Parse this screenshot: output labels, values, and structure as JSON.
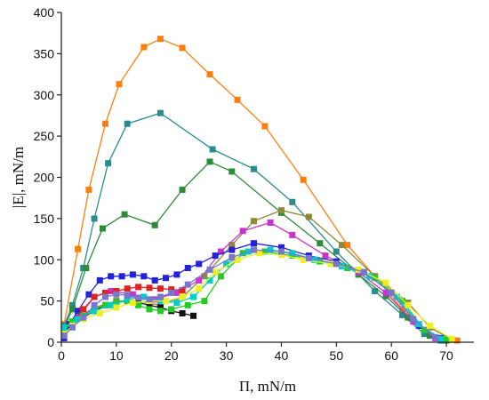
{
  "chart_data": {
    "type": "line",
    "xlabel": "Π, mN/m",
    "ylabel": "|E|, mN/m",
    "xlim": [
      0,
      75
    ],
    "ylim": [
      0,
      400
    ],
    "xticks": [
      0,
      10,
      20,
      30,
      40,
      50,
      60,
      70
    ],
    "yticks": [
      0,
      50,
      100,
      150,
      200,
      250,
      300,
      350,
      400
    ],
    "grid": false,
    "legend": "none",
    "series": [
      {
        "color": "#ff7f0e",
        "marker": "square",
        "points": [
          [
            0.5,
            22
          ],
          [
            3,
            113
          ],
          [
            5,
            185
          ],
          [
            8,
            265
          ],
          [
            10.5,
            313
          ],
          [
            15,
            358
          ],
          [
            18,
            368
          ],
          [
            22,
            357
          ],
          [
            27,
            325
          ],
          [
            32,
            294
          ],
          [
            37,
            262
          ],
          [
            44,
            197
          ],
          [
            52,
            118
          ],
          [
            57,
            80
          ],
          [
            62,
            40
          ],
          [
            66,
            13
          ],
          [
            70,
            3
          ],
          [
            72,
            2
          ]
        ]
      },
      {
        "color": "#2a8c8c",
        "marker": "square",
        "points": [
          [
            0.5,
            20
          ],
          [
            2,
            45
          ],
          [
            4,
            90
          ],
          [
            6,
            150
          ],
          [
            8.5,
            217
          ],
          [
            12,
            265
          ],
          [
            18,
            278
          ],
          [
            27.5,
            234
          ],
          [
            35,
            210
          ],
          [
            42,
            170
          ],
          [
            50,
            110
          ],
          [
            57,
            62
          ],
          [
            62,
            33
          ],
          [
            66,
            10
          ],
          [
            69,
            2
          ]
        ]
      },
      {
        "color": "#2e8b3a",
        "marker": "square",
        "points": [
          [
            0.5,
            18
          ],
          [
            2,
            40
          ],
          [
            4.5,
            90
          ],
          [
            7.5,
            138
          ],
          [
            11.5,
            155
          ],
          [
            17,
            142
          ],
          [
            22,
            185
          ],
          [
            27,
            219
          ],
          [
            31,
            207
          ],
          [
            40,
            157
          ],
          [
            47,
            120
          ],
          [
            54,
            82
          ],
          [
            59,
            56
          ],
          [
            63,
            30
          ],
          [
            67,
            8
          ],
          [
            70,
            2
          ]
        ]
      },
      {
        "color": "#8b8b3a",
        "marker": "square",
        "points": [
          [
            0.5,
            15
          ],
          [
            3,
            30
          ],
          [
            6,
            42
          ],
          [
            10,
            50
          ],
          [
            14,
            50
          ],
          [
            18,
            45
          ],
          [
            22,
            55
          ],
          [
            26,
            80
          ],
          [
            31,
            118
          ],
          [
            35,
            147
          ],
          [
            40,
            160
          ],
          [
            45,
            152
          ],
          [
            51,
            118
          ],
          [
            57,
            80
          ],
          [
            63,
            48
          ],
          [
            67,
            18
          ],
          [
            71,
            3
          ]
        ]
      },
      {
        "color": "#cc33cc",
        "marker": "square",
        "points": [
          [
            0.5,
            12
          ],
          [
            3,
            30
          ],
          [
            6,
            55
          ],
          [
            9,
            62
          ],
          [
            13,
            58
          ],
          [
            17,
            52
          ],
          [
            21,
            60
          ],
          [
            25,
            75
          ],
          [
            29,
            110
          ],
          [
            33,
            135
          ],
          [
            38,
            145
          ],
          [
            42,
            130
          ],
          [
            48,
            105
          ],
          [
            54,
            85
          ],
          [
            59,
            60
          ],
          [
            64,
            25
          ],
          [
            68,
            5
          ]
        ]
      },
      {
        "color": "#2222dd",
        "marker": "square",
        "points": [
          [
            0.5,
            5
          ],
          [
            1.5,
            22
          ],
          [
            3,
            38
          ],
          [
            5,
            58
          ],
          [
            7,
            75
          ],
          [
            9,
            80
          ],
          [
            11,
            80
          ],
          [
            13,
            82
          ],
          [
            15,
            80
          ],
          [
            17,
            75
          ],
          [
            19,
            78
          ],
          [
            21,
            82
          ],
          [
            23,
            90
          ],
          [
            25,
            95
          ],
          [
            28,
            105
          ],
          [
            31,
            112
          ],
          [
            35,
            120
          ],
          [
            40,
            115
          ],
          [
            45,
            105
          ],
          [
            50,
            98
          ],
          [
            55,
            85
          ],
          [
            60,
            60
          ],
          [
            65,
            20
          ],
          [
            69,
            5
          ]
        ]
      },
      {
        "color": "#dd2222",
        "marker": "square",
        "points": [
          [
            0.5,
            10
          ],
          [
            2,
            25
          ],
          [
            4,
            40
          ],
          [
            6,
            55
          ],
          [
            8,
            60
          ],
          [
            10,
            62
          ],
          [
            12,
            65
          ],
          [
            14,
            67
          ],
          [
            16,
            66
          ],
          [
            18,
            65
          ],
          [
            20,
            64
          ],
          [
            22,
            63
          ]
        ]
      },
      {
        "color": "#111111",
        "marker": "square",
        "points": [
          [
            0.5,
            12
          ],
          [
            2,
            22
          ],
          [
            4,
            30
          ],
          [
            6,
            38
          ],
          [
            8,
            45
          ],
          [
            10,
            48
          ],
          [
            12,
            50
          ],
          [
            14,
            48
          ],
          [
            16,
            45
          ],
          [
            18,
            42
          ],
          [
            20,
            38
          ],
          [
            22,
            35
          ],
          [
            24,
            32
          ]
        ]
      },
      {
        "color": "#22cc22",
        "marker": "square",
        "points": [
          [
            0.5,
            14
          ],
          [
            2,
            25
          ],
          [
            4,
            32
          ],
          [
            6,
            40
          ],
          [
            8,
            45
          ],
          [
            10,
            48
          ],
          [
            12,
            50
          ],
          [
            14,
            45
          ],
          [
            16,
            40
          ],
          [
            18,
            38
          ],
          [
            20,
            40
          ],
          [
            23,
            45
          ],
          [
            26,
            50
          ],
          [
            29,
            80
          ],
          [
            33,
            108
          ],
          [
            37,
            110
          ],
          [
            42,
            105
          ],
          [
            47,
            98
          ],
          [
            52,
            90
          ],
          [
            57,
            78
          ],
          [
            62,
            50
          ],
          [
            66,
            15
          ],
          [
            70,
            3
          ]
        ]
      },
      {
        "color": "#00cccc",
        "marker": "square",
        "points": [
          [
            0.5,
            18
          ],
          [
            3,
            28
          ],
          [
            6,
            38
          ],
          [
            9,
            45
          ],
          [
            12,
            52
          ],
          [
            15,
            55
          ],
          [
            18,
            50
          ],
          [
            21,
            48
          ],
          [
            24,
            55
          ],
          [
            27,
            75
          ],
          [
            30,
            95
          ],
          [
            34,
            110
          ],
          [
            38,
            112
          ],
          [
            42,
            108
          ],
          [
            46,
            100
          ],
          [
            51,
            92
          ],
          [
            56,
            80
          ],
          [
            61,
            55
          ],
          [
            65,
            22
          ],
          [
            69,
            4
          ]
        ]
      },
      {
        "color": "#eeee22",
        "marker": "square",
        "points": [
          [
            0.5,
            10
          ],
          [
            2,
            20
          ],
          [
            4,
            28
          ],
          [
            7,
            35
          ],
          [
            10,
            42
          ],
          [
            13,
            48
          ],
          [
            16,
            50
          ],
          [
            19,
            50
          ],
          [
            22,
            55
          ],
          [
            25,
            65
          ],
          [
            28,
            85
          ],
          [
            32,
            100
          ],
          [
            36,
            108
          ],
          [
            40,
            106
          ],
          [
            44,
            100
          ],
          [
            49,
            95
          ],
          [
            54,
            88
          ],
          [
            59,
            72
          ],
          [
            63,
            45
          ],
          [
            67,
            20
          ],
          [
            71,
            4
          ]
        ]
      },
      {
        "color": "#7777cc",
        "marker": "square",
        "points": [
          [
            0.5,
            8
          ],
          [
            2,
            18
          ],
          [
            4,
            30
          ],
          [
            6,
            45
          ],
          [
            8,
            55
          ],
          [
            10,
            58
          ],
          [
            12,
            57
          ],
          [
            14,
            54
          ],
          [
            16,
            52
          ],
          [
            18,
            55
          ],
          [
            20,
            60
          ],
          [
            23,
            70
          ],
          [
            27,
            88
          ],
          [
            31,
            103
          ],
          [
            35,
            112
          ],
          [
            40,
            110
          ],
          [
            45,
            102
          ],
          [
            50,
            95
          ],
          [
            55,
            85
          ],
          [
            60,
            60
          ],
          [
            64,
            28
          ],
          [
            68,
            6
          ]
        ]
      }
    ]
  }
}
